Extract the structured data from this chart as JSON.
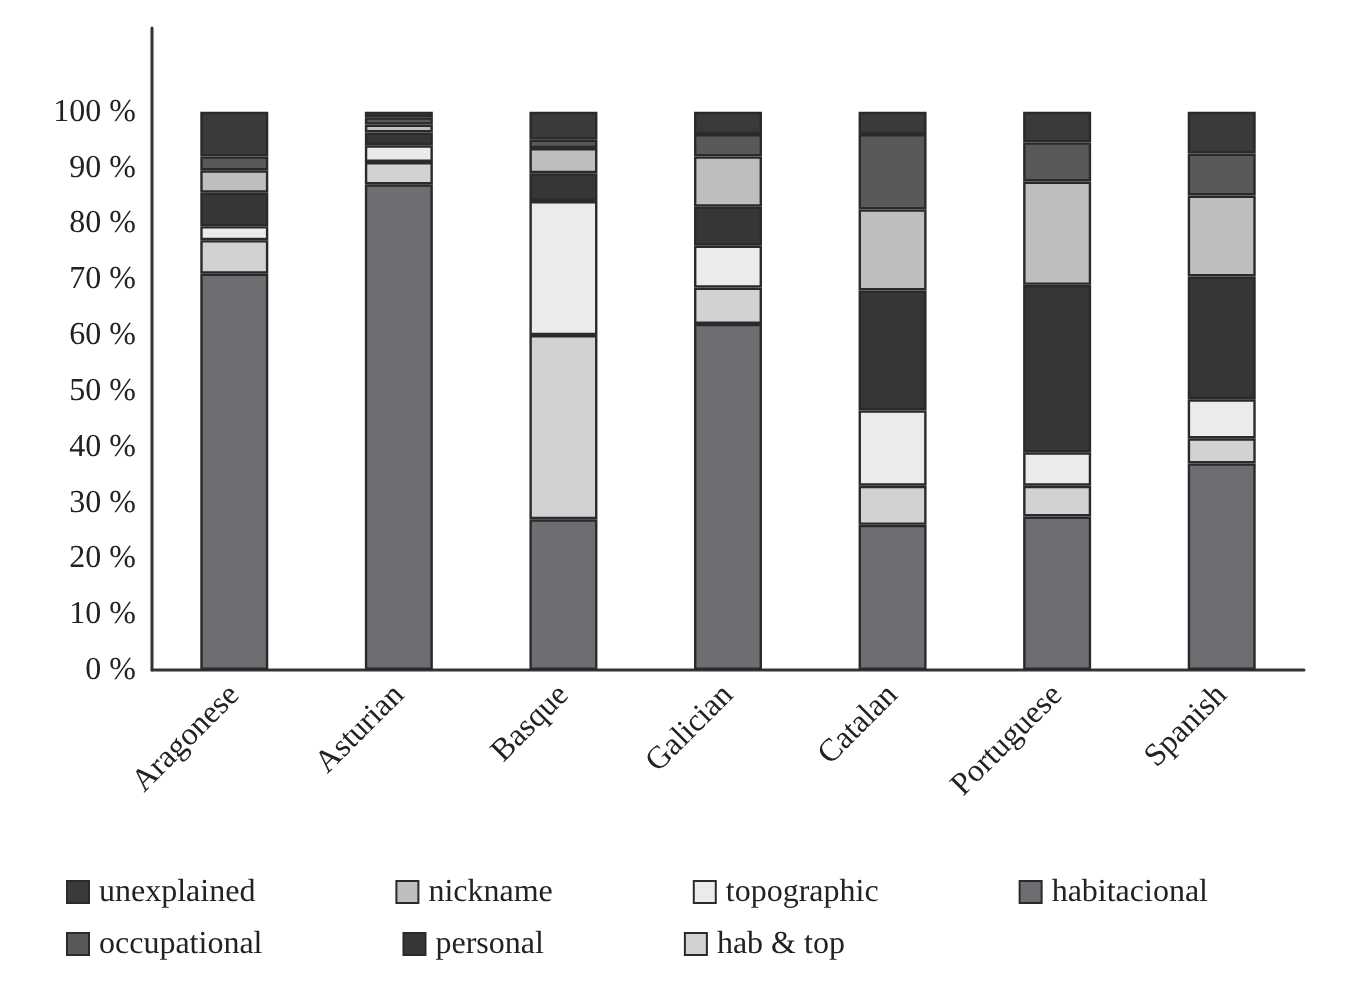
{
  "chart_data": {
    "type": "bar",
    "stacked": true,
    "categories": [
      "Aragonese",
      "Asturian",
      "Basque",
      "Galician",
      "Catalan",
      "Portuguese",
      "Spanish"
    ],
    "series": [
      {
        "name": "habitacional",
        "color": "#6d6e71",
        "values": [
          71,
          87,
          27,
          62,
          26,
          27.5,
          37
        ]
      },
      {
        "name": "hab & top",
        "color": "#d1d2d4",
        "values": [
          6,
          4,
          33,
          6.5,
          7,
          5.5,
          4.5
        ]
      },
      {
        "name": "topographic",
        "color": "#ebebed",
        "values": [
          2.5,
          3,
          24,
          7.5,
          13.5,
          6,
          7
        ]
      },
      {
        "name": "personal",
        "color": "#363636",
        "values": [
          6,
          2.3,
          5,
          7,
          21.5,
          30,
          22
        ]
      },
      {
        "name": "nickname",
        "color": "#bcbec0",
        "values": [
          4,
          1.4,
          4.5,
          9,
          14.5,
          18.5,
          14.5
        ]
      },
      {
        "name": "occupational",
        "color": "#58595b",
        "values": [
          2.5,
          1.3,
          1.5,
          4,
          13.5,
          7,
          7.5
        ]
      },
      {
        "name": "unexplained",
        "color": "#3a3a3a",
        "values": [
          8,
          1,
          5,
          4,
          4,
          5.5,
          7.5
        ]
      }
    ],
    "ylim": [
      0,
      115
    ],
    "yticks": [
      {
        "value": 0,
        "label": "0 %"
      },
      {
        "value": 10,
        "label": "10 %"
      },
      {
        "value": 20,
        "label": "20 %"
      },
      {
        "value": 30,
        "label": "30 %"
      },
      {
        "value": 40,
        "label": "40 %"
      },
      {
        "value": 50,
        "label": "50 %"
      },
      {
        "value": 60,
        "label": "60 %"
      },
      {
        "value": 70,
        "label": "70 %"
      },
      {
        "value": 80,
        "label": "80 %"
      },
      {
        "value": 90,
        "label": "90 %"
      },
      {
        "value": 100,
        "label": "100 %"
      }
    ],
    "grid": false,
    "legend": "bottom"
  }
}
